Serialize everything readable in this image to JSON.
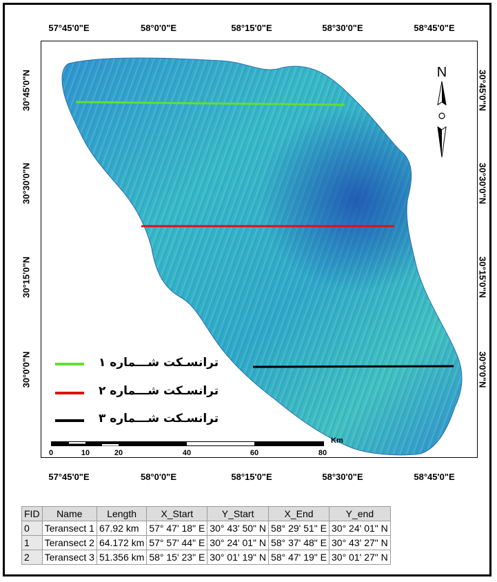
{
  "graticule": {
    "top": [
      "57°45'0\"E",
      "58°0'0\"E",
      "58°15'0\"E",
      "58°30'0\"E",
      "58°45'0\"E"
    ],
    "bottom": [
      "57°45'0\"E",
      "58°0'0\"E",
      "58°15'0\"E",
      "58°30'0\"E",
      "58°45'0\"E"
    ],
    "left": [
      "30°45'0\"N",
      "30°30'0\"N",
      "30°15'0\"N",
      "30°0'0\"N"
    ],
    "right": [
      "30°45'0\"N",
      "30°30'0\"N",
      "30°15'0\"N",
      "30°0'0\"N"
    ]
  },
  "north_arrow": {
    "letter": "N"
  },
  "legend": [
    {
      "label": "ترانسـکت شـــماره ۱",
      "color": "#66dd33"
    },
    {
      "label": "ترانسـکت شـــماره ۲",
      "color": "#dd1111"
    },
    {
      "label": "ترانسـکت شـــماره ۳",
      "color": "#000000"
    }
  ],
  "scale_bar": {
    "unit": "Km",
    "ticks": [
      "0",
      "10",
      "20",
      "40",
      "60",
      "80"
    ]
  },
  "table": {
    "headers": [
      "FID",
      "Name",
      "Length",
      "X_Start",
      "Y_Start",
      "X_End",
      "Y_end"
    ],
    "rows": [
      [
        "0",
        "Teransect 1",
        "67.92 km",
        "57° 47' 18\" E",
        "30° 43' 50\" N",
        "58° 29' 51\" E",
        "30° 24' 01\"  N"
      ],
      [
        "1",
        "Teransect 2",
        "64.172 km",
        "57° 57' 44\" E",
        "30° 24' 01\" N",
        "58° 37' 48\" E",
        "30° 43' 27\"  N"
      ],
      [
        "2",
        "Teransect 3",
        "51.356 km",
        "58° 15' 23\" E",
        "30° 01' 19\" N",
        "58° 47' 19\" E",
        "30° 01' 27\"  N"
      ]
    ]
  }
}
